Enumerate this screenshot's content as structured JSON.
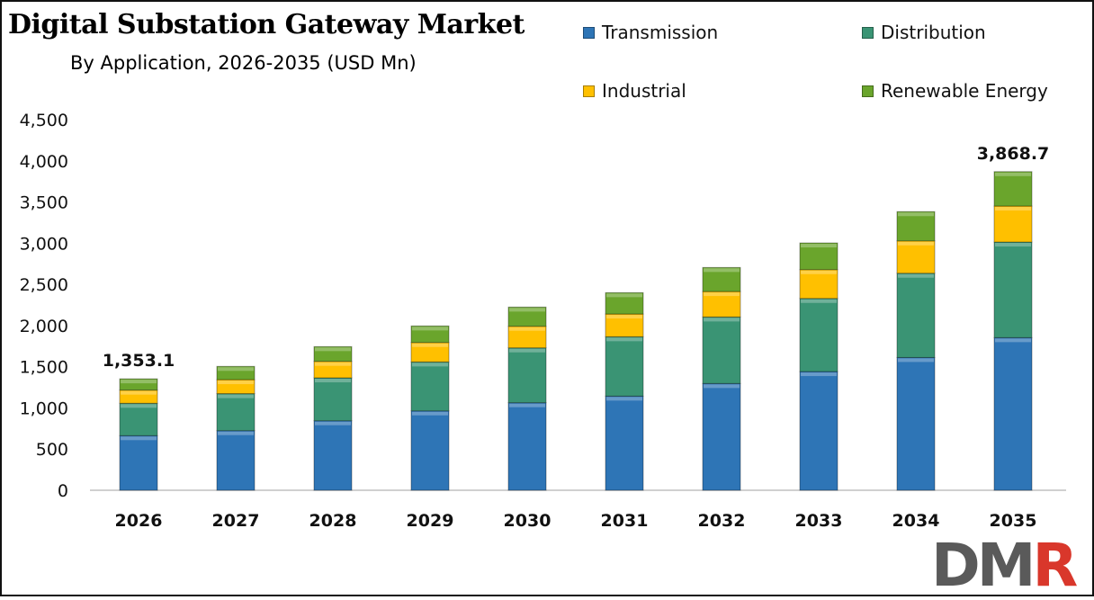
{
  "chart_data": {
    "type": "bar",
    "stacked": true,
    "title": "Digital Substation Gateway Market",
    "subtitle": "By Application, 2026-2035 (USD Mn)",
    "categories": [
      "2026",
      "2027",
      "2028",
      "2029",
      "2030",
      "2031",
      "2032",
      "2033",
      "2034",
      "2035"
    ],
    "series": [
      {
        "name": "Transmission",
        "color": "#2E75B6",
        "values": [
          663,
          724,
          844,
          964,
          1063,
          1143,
          1296,
          1441,
          1612,
          1853
        ]
      },
      {
        "name": "Distribution",
        "color": "#3A9474",
        "values": [
          393,
          449,
          521,
          594,
          666,
          721,
          808,
          888,
          1023,
          1161
        ]
      },
      {
        "name": "Industrial",
        "color": "#FFC000",
        "values": [
          160,
          170,
          200,
          236,
          262,
          276,
          309,
          350,
          393,
          437
        ]
      },
      {
        "name": "Renewable Energy",
        "color": "#6AA52C",
        "values": [
          137.1,
          161,
          179,
          201,
          233,
          259,
          292,
          324,
          355,
          417.7
        ]
      }
    ],
    "data_labels": [
      {
        "category": "2026",
        "text": "1,353.1"
      },
      {
        "category": "2035",
        "text": "3,868.7"
      }
    ],
    "yticks": [
      "0",
      "500",
      "1,000",
      "1,500",
      "2,000",
      "2,500",
      "3,000",
      "3,500",
      "4,000",
      "4,500"
    ],
    "ylim": [
      0,
      4500
    ],
    "grid": false,
    "legend_position": "top-right"
  },
  "logo": {
    "text": "DMR",
    "colors": [
      "#5a5a5a",
      "#d9372b"
    ]
  }
}
